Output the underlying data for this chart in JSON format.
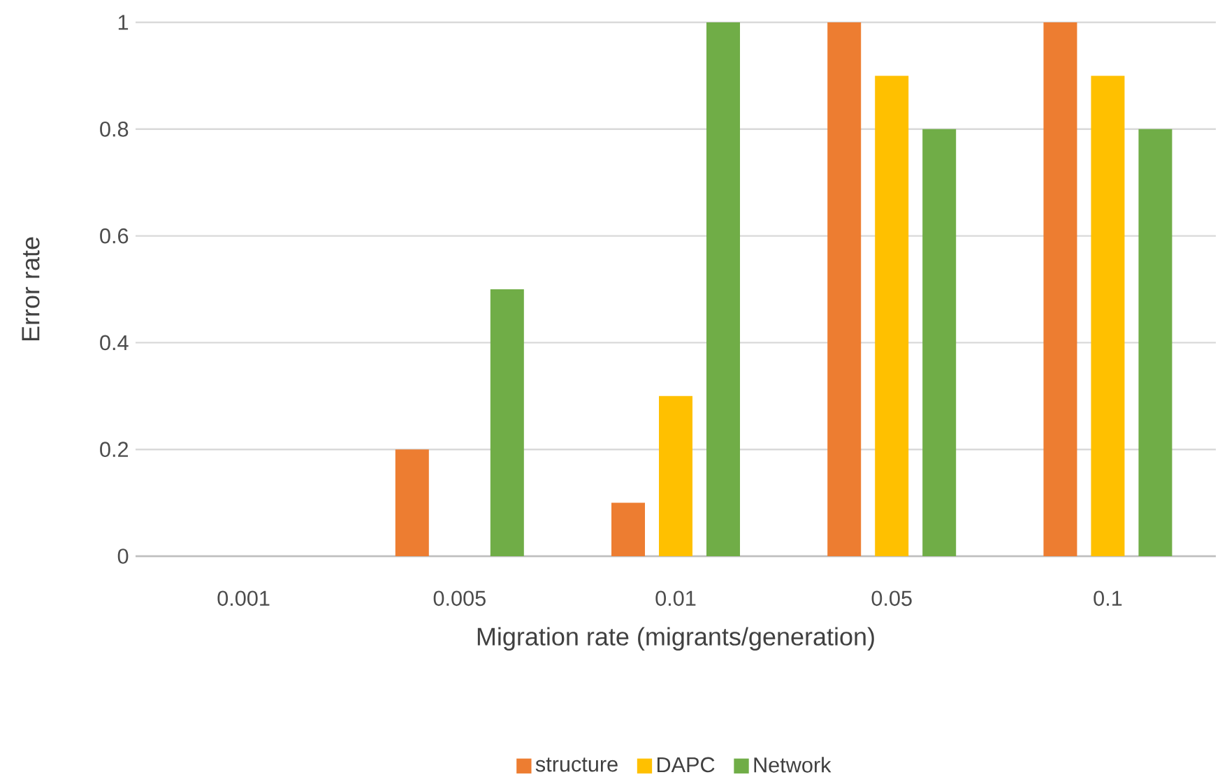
{
  "chart_data": {
    "type": "bar",
    "xlabel": "Migration rate (migrants/generation)",
    "ylabel": "Error rate",
    "categories": [
      "0.001",
      "0.005",
      "0.01",
      "0.05",
      "0.1"
    ],
    "series": [
      {
        "name": "structure",
        "color": "#ed7d31",
        "values": [
          0,
          0.2,
          0.1,
          1,
          1
        ]
      },
      {
        "name": "DAPC",
        "color": "#ffc000",
        "values": [
          0,
          0,
          0.3,
          0.9,
          0.9
        ]
      },
      {
        "name": "Network",
        "color": "#70ad47",
        "values": [
          0,
          0.5,
          1,
          0.8,
          0.8
        ]
      }
    ],
    "ylim": [
      0,
      1
    ],
    "yticks": [
      0,
      0.2,
      0.4,
      0.6,
      0.8,
      1
    ],
    "grid": "y",
    "legend": "bottom"
  }
}
